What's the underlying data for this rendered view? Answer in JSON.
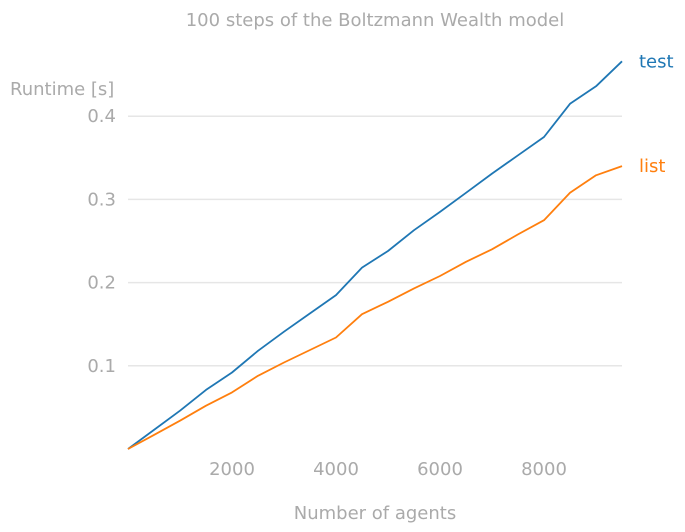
{
  "chart_data": {
    "type": "line",
    "title": "100 steps of the Boltzmann Wealth model",
    "xlabel": "Number of agents",
    "ylabel": "Runtime [s]",
    "xlim": [
      0,
      9500
    ],
    "ylim": [
      0,
      0.47
    ],
    "xticks": [
      2000,
      4000,
      6000,
      8000
    ],
    "xtick_labels": [
      "2000",
      "4000",
      "6000",
      "8000"
    ],
    "yticks": [
      0.1,
      0.2,
      0.3,
      0.4
    ],
    "ytick_labels": [
      "0.1",
      "0.2",
      "0.3",
      "0.4"
    ],
    "grid": "horizontal",
    "legend": "labels at line ends (right)",
    "x": [
      0,
      500,
      1000,
      1500,
      2000,
      2500,
      3000,
      3500,
      4000,
      4500,
      5000,
      5500,
      6000,
      6500,
      7000,
      7500,
      8000,
      8500,
      9000,
      9500
    ],
    "series": [
      {
        "name": "test",
        "color": "#1f77b4",
        "values": [
          0.0,
          0.023,
          0.046,
          0.071,
          0.092,
          0.118,
          0.141,
          0.163,
          0.185,
          0.218,
          0.238,
          0.263,
          0.285,
          0.308,
          0.331,
          0.353,
          0.375,
          0.415,
          0.436,
          0.466
        ]
      },
      {
        "name": "list",
        "color": "#ff7f0e",
        "values": [
          0.0,
          0.017,
          0.034,
          0.052,
          0.068,
          0.088,
          0.104,
          0.119,
          0.134,
          0.162,
          0.177,
          0.193,
          0.208,
          0.225,
          0.24,
          0.258,
          0.275,
          0.308,
          0.329,
          0.34
        ]
      }
    ]
  }
}
